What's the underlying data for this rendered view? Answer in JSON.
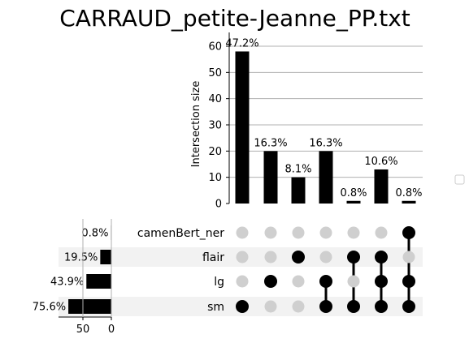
{
  "chart_data": {
    "type": "upset",
    "title": "CARRAUD_petite-Jeanne_PP.txt",
    "ylabel": "Intersection size",
    "ylim": [
      0,
      60
    ],
    "yticks": [
      "0",
      "10",
      "20",
      "30",
      "40",
      "50",
      "60"
    ],
    "set_xticks": [
      "50",
      "0"
    ],
    "set_xmax": 100,
    "sets": [
      {
        "name": "camenBert_ner",
        "size_pct": 0.8,
        "label": "0.8%"
      },
      {
        "name": "flair",
        "size_pct": 19.5,
        "label": "19.5%"
      },
      {
        "name": "lg",
        "size_pct": 43.9,
        "label": "43.9%"
      },
      {
        "name": "sm",
        "size_pct": 75.6,
        "label": "75.6%"
      }
    ],
    "intersections": [
      {
        "value": 58,
        "label": "47.2%",
        "members": [
          "sm"
        ]
      },
      {
        "value": 20,
        "label": "16.3%",
        "members": [
          "lg"
        ]
      },
      {
        "value": 10,
        "label": "8.1%",
        "members": [
          "flair"
        ]
      },
      {
        "value": 20,
        "label": "16.3%",
        "members": [
          "lg",
          "sm"
        ]
      },
      {
        "value": 1,
        "label": "0.8%",
        "members": [
          "flair",
          "sm"
        ]
      },
      {
        "value": 13,
        "label": "10.6%",
        "members": [
          "flair",
          "lg",
          "sm"
        ]
      },
      {
        "value": 1,
        "label": "0.8%",
        "members": [
          "camenBert_ner",
          "lg",
          "sm"
        ]
      }
    ]
  },
  "colors": {
    "bar": "#000000",
    "dot_on": "#000000",
    "dot_off": "#cfcfcf",
    "band": "#f2f2f2",
    "grid": "#b0b0b0"
  }
}
